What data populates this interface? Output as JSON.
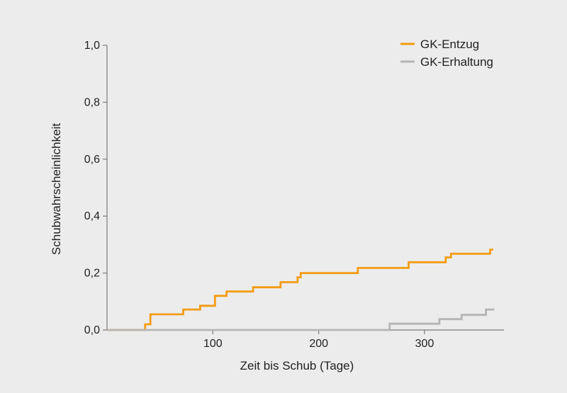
{
  "chart_data": {
    "type": "line",
    "step": true,
    "title": "",
    "xlabel": "Zeit bis Schub (Tage)",
    "ylabel": "Schubwahrscheinlichkeit",
    "xlim": [
      0,
      375
    ],
    "ylim": [
      0,
      1.0
    ],
    "xticks": [
      100,
      200,
      300
    ],
    "xtick_labels": [
      "100",
      "200",
      "300"
    ],
    "yticks": [
      0.0,
      0.2,
      0.4,
      0.6,
      0.8,
      1.0
    ],
    "ytick_labels": [
      "0,0",
      "0,2",
      "0,4",
      "0,6",
      "0,8",
      "1,0"
    ],
    "grid": false,
    "legend_position": "top-right",
    "series": [
      {
        "name": "GK-Entzug",
        "color": "#f39c12",
        "x": [
          0,
          36,
          41,
          72,
          88,
          102,
          113,
          138,
          164,
          180,
          183,
          237,
          285,
          320,
          325,
          362,
          365
        ],
        "y": [
          0.0,
          0.02,
          0.055,
          0.072,
          0.085,
          0.12,
          0.135,
          0.15,
          0.168,
          0.185,
          0.2,
          0.218,
          0.238,
          0.255,
          0.268,
          0.282,
          0.282
        ]
      },
      {
        "name": "GK-Erhaltung",
        "color": "#b5b5b5",
        "x": [
          0,
          267,
          314,
          335,
          358,
          366
        ],
        "y": [
          0.0,
          0.022,
          0.038,
          0.053,
          0.072,
          0.072
        ]
      }
    ]
  }
}
